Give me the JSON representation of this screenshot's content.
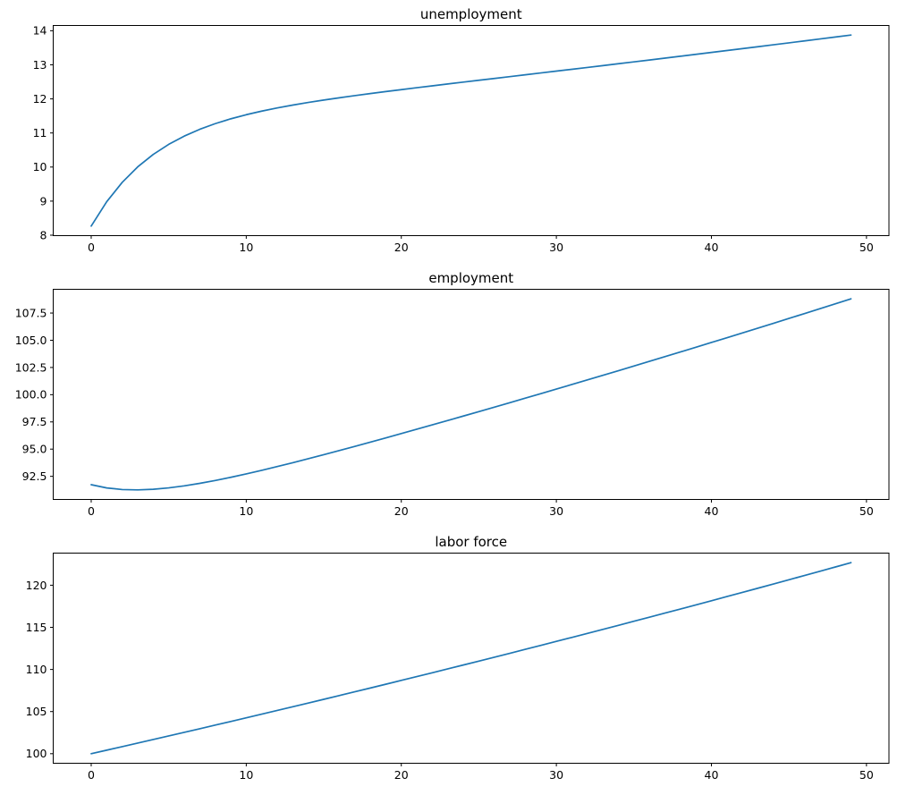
{
  "figure": {
    "background_color": "#ffffff",
    "spine_color": "#000000",
    "tick_color": "#000000",
    "text_color": "#000000"
  },
  "chart_data": [
    {
      "id": "unemployment",
      "type": "line",
      "title": "unemployment",
      "series_color": "#1f77b4",
      "grid": false,
      "legend": null,
      "xlabel": "",
      "ylabel": "",
      "xlim": [
        -2.45,
        51.45
      ],
      "ylim": [
        7.987,
        14.154
      ],
      "xticks": [
        0,
        10,
        20,
        30,
        40,
        50
      ],
      "xtick_labels": [
        "0",
        "10",
        "20",
        "30",
        "40",
        "50"
      ],
      "yticks": [
        8,
        9,
        10,
        11,
        12,
        13,
        14
      ],
      "ytick_labels": [
        "8",
        "9",
        "10",
        "11",
        "12",
        "13",
        "14"
      ],
      "x": [
        0,
        1,
        2,
        3,
        4,
        5,
        6,
        7,
        8,
        9,
        10,
        11,
        12,
        13,
        14,
        15,
        16,
        17,
        18,
        19,
        20,
        21,
        22,
        23,
        24,
        25,
        26,
        27,
        28,
        29,
        30,
        31,
        32,
        33,
        34,
        35,
        36,
        37,
        38,
        39,
        40,
        41,
        42,
        43,
        44,
        45,
        46,
        47,
        48,
        49
      ],
      "y": [
        8.267,
        8.982,
        9.55,
        10.005,
        10.37,
        10.666,
        10.908,
        11.107,
        11.274,
        11.415,
        11.536,
        11.641,
        11.734,
        11.818,
        11.895,
        11.966,
        12.032,
        12.095,
        12.156,
        12.215,
        12.272,
        12.328,
        12.383,
        12.438,
        12.492,
        12.546,
        12.6,
        12.654,
        12.707,
        12.761,
        12.815,
        12.869,
        12.923,
        12.977,
        13.032,
        13.086,
        13.141,
        13.196,
        13.252,
        13.307,
        13.363,
        13.419,
        13.475,
        13.531,
        13.588,
        13.644,
        13.701,
        13.759,
        13.816,
        13.874
      ]
    },
    {
      "id": "employment",
      "type": "line",
      "title": "employment",
      "series_color": "#1f77b4",
      "grid": false,
      "legend": null,
      "xlabel": "",
      "ylabel": "",
      "xlim": [
        -2.45,
        51.45
      ],
      "ylim": [
        90.377,
        109.681
      ],
      "xticks": [
        0,
        10,
        20,
        30,
        40,
        50
      ],
      "xtick_labels": [
        "0",
        "10",
        "20",
        "30",
        "40",
        "50"
      ],
      "yticks": [
        92.5,
        95.0,
        97.5,
        100.0,
        102.5,
        105.0,
        107.5
      ],
      "ytick_labels": [
        "92.5",
        "95.0",
        "97.5",
        "100.0",
        "102.5",
        "105.0",
        "107.5"
      ],
      "x": [
        0,
        1,
        2,
        3,
        4,
        5,
        6,
        7,
        8,
        9,
        10,
        11,
        12,
        13,
        14,
        15,
        16,
        17,
        18,
        19,
        20,
        21,
        22,
        23,
        24,
        25,
        26,
        27,
        28,
        29,
        30,
        31,
        32,
        33,
        34,
        35,
        36,
        37,
        38,
        39,
        40,
        41,
        42,
        43,
        44,
        45,
        46,
        47,
        48,
        49
      ],
      "y": [
        91.733,
        91.436,
        91.287,
        91.254,
        91.312,
        91.441,
        91.626,
        91.855,
        92.119,
        92.411,
        92.724,
        93.054,
        93.399,
        93.754,
        94.119,
        94.491,
        94.87,
        95.253,
        95.641,
        96.033,
        96.429,
        96.827,
        97.228,
        97.631,
        98.037,
        98.445,
        98.855,
        99.267,
        99.681,
        100.097,
        100.515,
        100.935,
        101.357,
        101.78,
        102.205,
        102.632,
        103.061,
        103.492,
        103.924,
        104.359,
        104.795,
        105.233,
        105.673,
        106.114,
        106.558,
        107.003,
        107.451,
        107.9,
        108.351,
        108.804
      ]
    },
    {
      "id": "labor-force",
      "type": "line",
      "title": "labor force",
      "series_color": "#1f77b4",
      "grid": false,
      "legend": null,
      "xlabel": "",
      "ylabel": "",
      "xlim": [
        -2.45,
        51.45
      ],
      "ylim": [
        98.866,
        123.812
      ],
      "xticks": [
        0,
        10,
        20,
        30,
        40,
        50
      ],
      "xtick_labels": [
        "0",
        "10",
        "20",
        "30",
        "40",
        "50"
      ],
      "yticks": [
        100,
        105,
        110,
        115,
        120
      ],
      "ytick_labels": [
        "100",
        "105",
        "110",
        "115",
        "120"
      ],
      "x": [
        0,
        1,
        2,
        3,
        4,
        5,
        6,
        7,
        8,
        9,
        10,
        11,
        12,
        13,
        14,
        15,
        16,
        17,
        18,
        19,
        20,
        21,
        22,
        23,
        24,
        25,
        26,
        27,
        28,
        29,
        30,
        31,
        32,
        33,
        34,
        35,
        36,
        37,
        38,
        39,
        40,
        41,
        42,
        43,
        44,
        45,
        46,
        47,
        48,
        49
      ],
      "y": [
        100.0,
        100.418,
        100.838,
        101.259,
        101.683,
        102.108,
        102.534,
        102.963,
        103.393,
        103.826,
        104.26,
        104.695,
        105.133,
        105.572,
        106.014,
        106.457,
        106.902,
        107.349,
        107.797,
        108.248,
        108.701,
        109.155,
        109.611,
        110.069,
        110.529,
        110.991,
        111.455,
        111.921,
        112.389,
        112.859,
        113.331,
        113.804,
        114.28,
        114.758,
        115.237,
        115.719,
        116.203,
        116.688,
        117.176,
        117.666,
        118.158,
        118.652,
        119.148,
        119.646,
        120.146,
        120.648,
        121.152,
        121.659,
        122.167,
        122.678
      ]
    }
  ]
}
